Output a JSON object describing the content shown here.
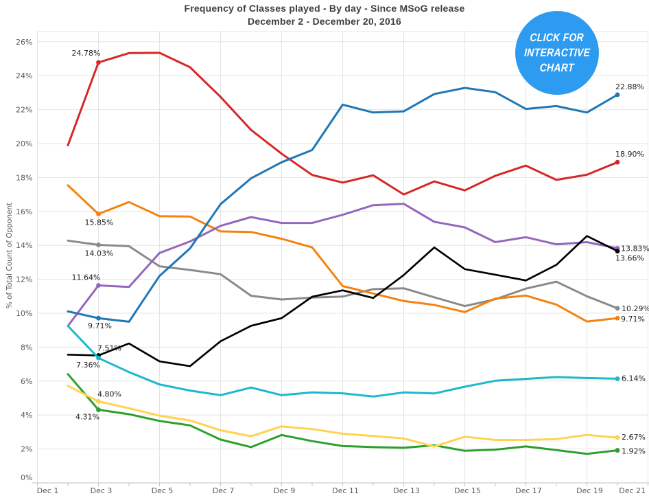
{
  "title": "Frequency of Classes played - By day - Since MSoG release",
  "subtitle": "December 2 - December 20, 2016",
  "badge": {
    "lines": [
      "CLICK FOR",
      "INTERACTIVE",
      "CHART"
    ],
    "color": "#2d9bf0",
    "text_color": "#ffffff"
  },
  "chart_data": {
    "type": "line",
    "title": "Frequency of Classes played - By day - Since MSoG release",
    "subtitle": "December 2 - December 20, 2016",
    "xlabel": "",
    "ylabel": "% of Total Count of Opponent",
    "x_axis": {
      "tick_labels": [
        "Dec 1",
        "Dec 3",
        "Dec 5",
        "Dec 7",
        "Dec 9",
        "Dec 11",
        "Dec 13",
        "Dec 15",
        "Dec 17",
        "Dec 19",
        "Dec 21"
      ],
      "range_days": [
        "Dec 1",
        "Dec 21"
      ],
      "grid": true
    },
    "y_axis": {
      "tick_labels": [
        "0%",
        "2%",
        "4%",
        "6%",
        "8%",
        "10%",
        "12%",
        "14%",
        "16%",
        "18%",
        "20%",
        "22%",
        "24%",
        "26%"
      ],
      "min": 0,
      "max": 26,
      "unit": "%",
      "grid": true
    },
    "x": [
      "Dec 2",
      "Dec 3",
      "Dec 4",
      "Dec 5",
      "Dec 6",
      "Dec 7",
      "Dec 8",
      "Dec 9",
      "Dec 10",
      "Dec 11",
      "Dec 12",
      "Dec 13",
      "Dec 14",
      "Dec 15",
      "Dec 16",
      "Dec 17",
      "Dec 18",
      "Dec 19",
      "Dec 20"
    ],
    "series": [
      {
        "id": "gray",
        "color": "#8a8a8a",
        "values": [
          14.28,
          14.03,
          13.95,
          12.77,
          12.55,
          12.3,
          11.03,
          10.81,
          10.92,
          10.98,
          11.42,
          11.47,
          10.94,
          10.42,
          10.82,
          11.45,
          11.86,
          11.0,
          10.29
        ],
        "start_label": "14.03%",
        "end_label": "10.29%"
      },
      {
        "id": "red",
        "color": "#d62728",
        "values": [
          19.9,
          24.78,
          25.33,
          25.35,
          24.5,
          22.75,
          20.8,
          19.4,
          18.15,
          17.7,
          18.13,
          17.0,
          17.77,
          17.24,
          18.1,
          18.7,
          17.86,
          18.16,
          18.9
        ],
        "start_label": "24.78%",
        "end_label": "18.90%"
      },
      {
        "id": "orange",
        "color": "#f5820e",
        "values": [
          17.54,
          15.85,
          16.55,
          15.72,
          15.7,
          14.82,
          14.79,
          14.39,
          13.88,
          11.6,
          11.16,
          10.72,
          10.49,
          10.07,
          10.86,
          11.04,
          10.51,
          9.51,
          9.71
        ],
        "start_label": "15.85%",
        "end_label": "9.71%"
      },
      {
        "id": "purple",
        "color": "#9467bd",
        "values": [
          9.25,
          11.64,
          11.55,
          13.55,
          14.23,
          15.15,
          15.67,
          15.32,
          15.32,
          15.8,
          16.37,
          16.45,
          15.39,
          15.06,
          14.19,
          14.48,
          14.06,
          14.19,
          13.83
        ],
        "start_label": "11.64%",
        "end_label": "13.83%"
      },
      {
        "id": "black",
        "color": "#000000",
        "values": [
          7.56,
          7.51,
          8.22,
          7.16,
          6.88,
          8.35,
          9.26,
          9.71,
          10.97,
          11.35,
          10.9,
          12.25,
          13.88,
          12.6,
          12.27,
          11.93,
          12.85,
          14.55,
          13.66
        ],
        "start_label": "7.51%",
        "end_label": "13.66%"
      },
      {
        "id": "green",
        "color": "#2ca02c",
        "values": [
          6.41,
          4.31,
          4.05,
          3.65,
          3.39,
          2.55,
          2.11,
          2.82,
          2.46,
          2.17,
          2.11,
          2.07,
          2.22,
          1.89,
          1.96,
          2.15,
          1.93,
          1.71,
          1.92
        ],
        "start_label": "4.31%",
        "end_label": "1.92%"
      },
      {
        "id": "yellow",
        "color": "#ffd34f",
        "values": [
          5.72,
          4.8,
          4.4,
          3.96,
          3.68,
          3.1,
          2.75,
          3.33,
          3.17,
          2.9,
          2.76,
          2.62,
          2.14,
          2.72,
          2.53,
          2.53,
          2.58,
          2.83,
          2.67
        ],
        "start_label": "4.80%",
        "end_label": "2.67%"
      },
      {
        "id": "cyan",
        "color": "#1cb8ce",
        "values": [
          9.25,
          7.36,
          6.53,
          5.8,
          5.44,
          5.17,
          5.62,
          5.17,
          5.33,
          5.28,
          5.09,
          5.33,
          5.27,
          5.67,
          6.02,
          6.13,
          6.24,
          6.18,
          6.14
        ],
        "start_label": "7.36%",
        "end_label": "6.14%"
      },
      {
        "id": "blue",
        "color": "#1f77b4",
        "values": [
          10.11,
          9.71,
          9.5,
          12.2,
          13.82,
          16.43,
          17.95,
          18.9,
          19.62,
          22.29,
          21.83,
          21.9,
          22.92,
          23.28,
          23.03,
          22.04,
          22.21,
          21.83,
          22.88
        ],
        "start_label": "9.71%",
        "end_label": "22.88%"
      }
    ],
    "legend": false,
    "annotations": [
      "CLICK FOR INTERACTIVE CHART"
    ]
  }
}
